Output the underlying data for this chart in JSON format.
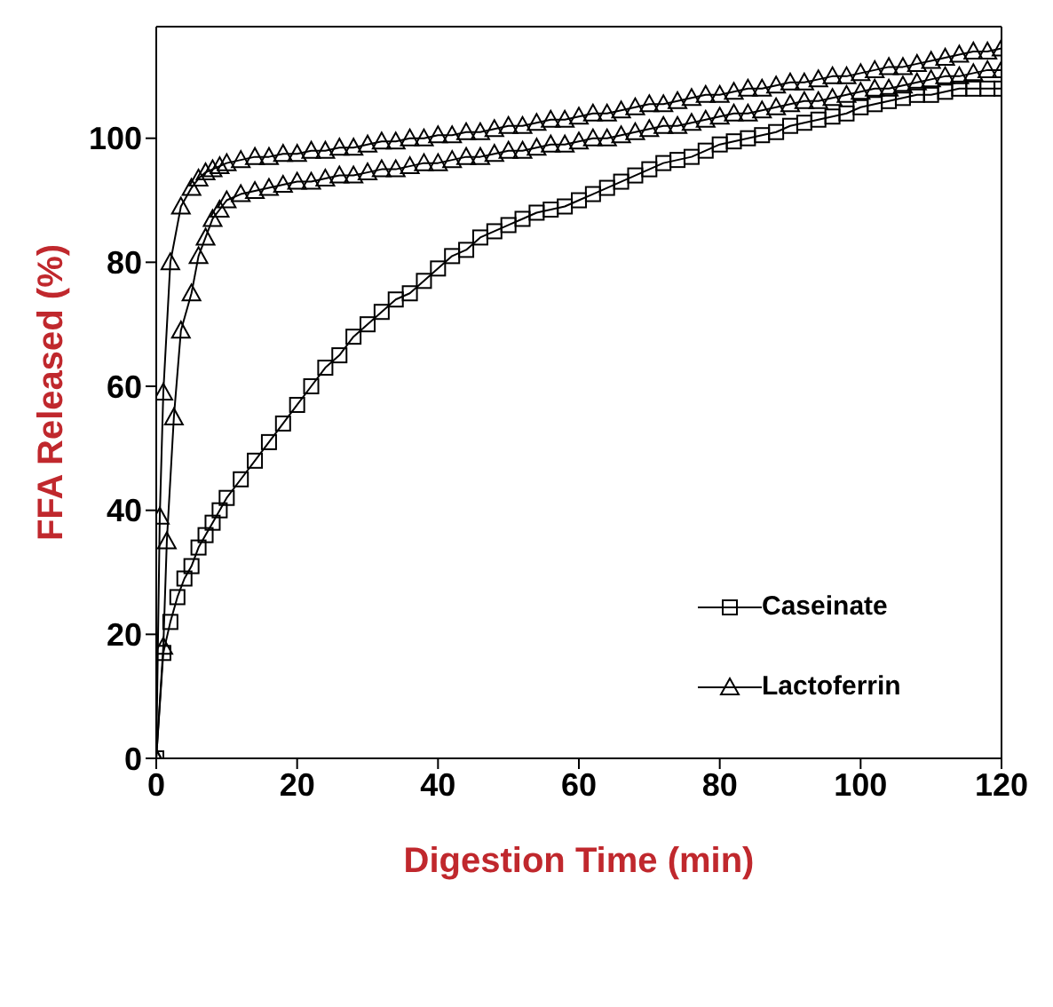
{
  "chart_data": {
    "type": "line",
    "xlabel": "Digestion Time (min)",
    "ylabel": "FFA Released (%)",
    "xlim": [
      0,
      120
    ],
    "xticks": [
      0,
      20,
      40,
      60,
      80,
      100,
      120
    ],
    "ylim": [
      0,
      118
    ],
    "yticks": [
      0,
      20,
      40,
      60,
      80,
      100
    ],
    "grid": false,
    "legend": "bottom right",
    "line_style": "solid",
    "series": [
      {
        "name": "Caseinate",
        "color": "#000000",
        "marker": "square",
        "x": [
          0,
          1,
          2,
          3,
          4,
          5,
          6,
          7,
          8,
          9,
          10,
          12,
          14,
          16,
          18,
          20,
          22,
          24,
          26,
          28,
          30,
          32,
          34,
          36,
          38,
          40,
          42,
          44,
          46,
          48,
          50,
          52,
          54,
          56,
          58,
          60,
          62,
          64,
          66,
          68,
          70,
          72,
          74,
          76,
          78,
          80,
          82,
          84,
          86,
          88,
          90,
          92,
          94,
          96,
          98,
          100,
          102,
          104,
          106,
          108,
          110,
          112,
          114,
          116,
          118,
          120
        ],
        "values": [
          0,
          17,
          22,
          26,
          29,
          31,
          34,
          36,
          38,
          40,
          42,
          45,
          48,
          51,
          54,
          57,
          60,
          63,
          65,
          68,
          70,
          72,
          74,
          75,
          77,
          79,
          81,
          82,
          84,
          85,
          86,
          87,
          88,
          88.5,
          89,
          90,
          91,
          92,
          93,
          94,
          95,
          96,
          96.5,
          97,
          98,
          99,
          99.5,
          100,
          100.5,
          101,
          102,
          102.5,
          103,
          103.5,
          104,
          105,
          105.5,
          106,
          106.5,
          107,
          107,
          107.5,
          108,
          108,
          108,
          108
        ]
      },
      {
        "name": "Lactoferrin",
        "color": "#000000",
        "marker": "triangle",
        "x": [
          0,
          1,
          1.5,
          2.5,
          3.5,
          5,
          6,
          7,
          8,
          9,
          10,
          12,
          14,
          16,
          18,
          20,
          22,
          24,
          26,
          28,
          30,
          32,
          34,
          36,
          38,
          40,
          42,
          44,
          46,
          48,
          50,
          52,
          54,
          56,
          58,
          60,
          62,
          64,
          66,
          68,
          70,
          72,
          74,
          76,
          78,
          80,
          82,
          84,
          86,
          88,
          90,
          92,
          94,
          96,
          98,
          100,
          102,
          104,
          106,
          108,
          110,
          112,
          114,
          116,
          118,
          120
        ],
        "values": [
          0,
          18,
          35,
          55,
          69,
          75,
          81,
          84,
          87,
          88.5,
          90,
          91,
          91.5,
          92,
          92.5,
          93,
          93,
          93.5,
          94,
          94,
          94.5,
          95,
          95,
          95.5,
          96,
          96,
          96.5,
          97,
          97,
          97.5,
          98,
          98,
          98.5,
          99,
          99,
          99.5,
          100,
          100,
          100.5,
          101,
          101.5,
          102,
          102,
          102.5,
          103,
          103.5,
          104,
          104,
          104.5,
          105,
          105.5,
          106,
          106,
          106.5,
          107,
          107.5,
          108,
          108,
          108.5,
          109,
          109.5,
          110,
          110,
          110.5,
          111,
          111
        ]
      },
      {
        "color": "#000000",
        "marker": "triangle",
        "x": [
          0,
          0.5,
          1,
          2,
          3.5,
          5,
          6,
          7,
          8,
          9,
          10,
          12,
          14,
          16,
          18,
          20,
          22,
          24,
          26,
          28,
          30,
          32,
          34,
          36,
          38,
          40,
          42,
          44,
          46,
          48,
          50,
          52,
          54,
          56,
          58,
          60,
          62,
          64,
          66,
          68,
          70,
          72,
          74,
          76,
          78,
          80,
          82,
          84,
          86,
          88,
          90,
          92,
          94,
          96,
          98,
          100,
          102,
          104,
          106,
          108,
          110,
          112,
          114,
          116,
          118,
          120
        ],
        "values": [
          0,
          39,
          59,
          80,
          89,
          92,
          93.5,
          94.5,
          95,
          95.5,
          96,
          96.5,
          97,
          97,
          97.5,
          97.5,
          98,
          98,
          98.5,
          98.5,
          99,
          99.5,
          99.5,
          100,
          100,
          100.5,
          100.5,
          101,
          101,
          101.5,
          102,
          102,
          102.5,
          103,
          103,
          103.5,
          104,
          104,
          104.5,
          105,
          105.5,
          105.5,
          106,
          106.5,
          107,
          107,
          107.5,
          108,
          108,
          108.5,
          109,
          109,
          109.5,
          110,
          110,
          110.5,
          111,
          111.5,
          111.5,
          112,
          112.5,
          113,
          113.5,
          114,
          114,
          114.5
        ]
      }
    ]
  }
}
